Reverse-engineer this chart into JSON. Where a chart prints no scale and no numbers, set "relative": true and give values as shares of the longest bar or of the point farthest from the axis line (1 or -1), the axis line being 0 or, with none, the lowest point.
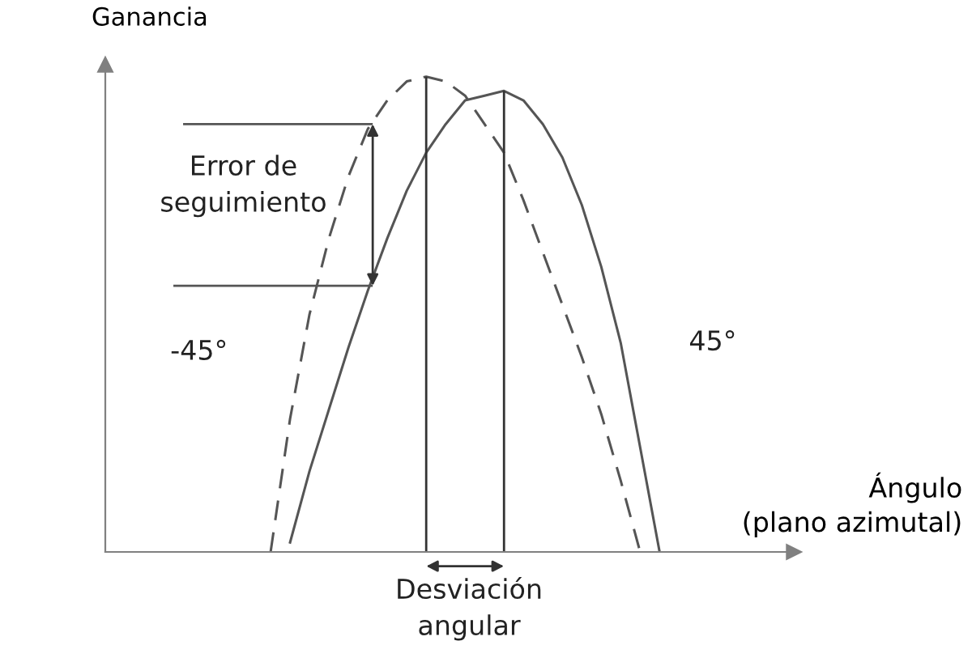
{
  "chart_data": {
    "type": "line",
    "relative": true,
    "ylabel": "Ganancia",
    "xlabel": "Ángulo\n(plano azimutal)",
    "categories": [
      null,
      null,
      null,
      null,
      null,
      null,
      null,
      null,
      null,
      null,
      null,
      null,
      null,
      null,
      null,
      null,
      null,
      null,
      null,
      null,
      null
    ],
    "series": [
      {
        "name": "-45°",
        "color": "#555555",
        "line_style": "dashed",
        "values": [
          0,
          0.28,
          0.5,
          0.66,
          0.79,
          0.89,
          0.95,
          0.99,
          1.0,
          0.99,
          0.96,
          0.9,
          0.84,
          0.74,
          0.63,
          0.52,
          0.41,
          0.29,
          0.15,
          0.0,
          null
        ]
      },
      {
        "name": "45°",
        "color": "#555555",
        "line_style": "solid",
        "values": [
          null,
          0.02,
          0.17,
          0.3,
          0.43,
          0.55,
          0.66,
          0.76,
          0.84,
          0.9,
          0.95,
          0.96,
          0.97,
          0.95,
          0.9,
          0.83,
          0.73,
          0.6,
          0.44,
          0.22,
          0
        ]
      }
    ],
    "ref_lines": [
      {
        "axis": "y",
        "value": 0.9,
        "color": "#555555"
      },
      {
        "axis": "y",
        "value": 0.56,
        "color": "#555555"
      }
    ],
    "annotations": [
      "Error de seguimiento",
      "Desviación angular"
    ],
    "grid": false,
    "legend": false
  }
}
